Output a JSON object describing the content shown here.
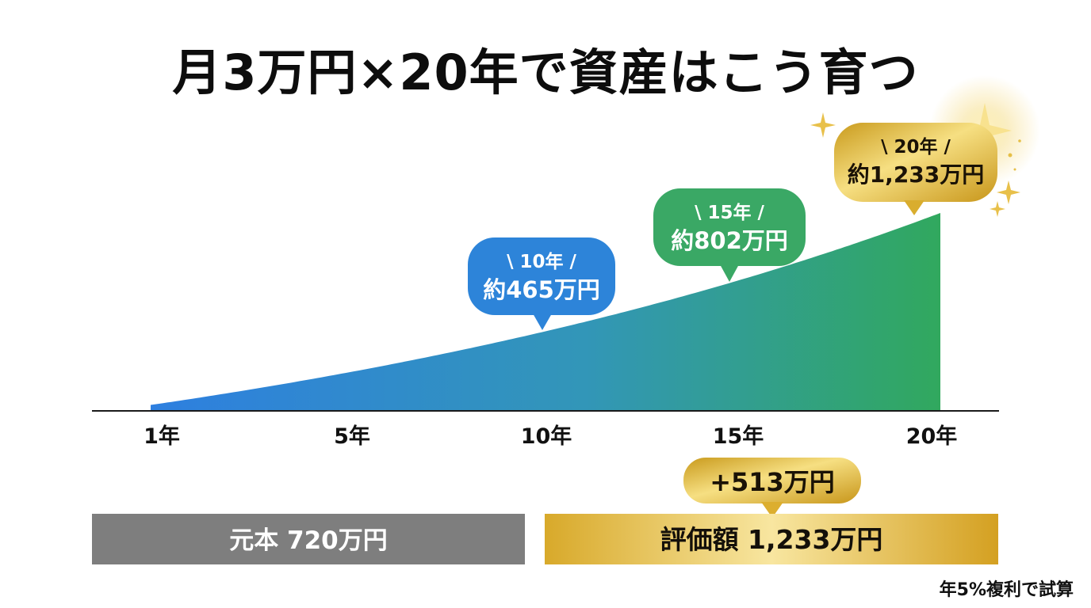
{
  "chart_data": {
    "type": "area",
    "title": "月3万円×20年で資産はこう育つ",
    "x": [
      1,
      5,
      10,
      15,
      20
    ],
    "x_tick_labels": [
      "1年",
      "5年",
      "10年",
      "15年",
      "20年"
    ],
    "series": [
      {
        "values": [
          37,
          204,
          465,
          802,
          1233
        ]
      }
    ],
    "value_unit": "万円",
    "xlim": [
      1,
      20
    ],
    "ylim": [
      0,
      1300
    ],
    "grid": false,
    "annotations": [
      {
        "x": 10,
        "value": 465,
        "line1": "\\ 10年 /",
        "line2": "約465万円"
      },
      {
        "x": 15,
        "value": 802,
        "line1": "\\ 15年 /",
        "line2": "約802万円"
      },
      {
        "x": 20,
        "value": 1233,
        "line1": "\\ 20年 /",
        "line2": "約1,233万円"
      }
    ],
    "comparison": {
      "principal_label": "元本 720万円",
      "principal": 720,
      "valuation_label": "評価額 1,233万円",
      "valuation": 1233,
      "gain_label": "+513万円",
      "gain": 513
    },
    "footnote": "年5%複利で試算",
    "colors": {
      "area_start": "#2e7fe0",
      "area_end": "#31a85e",
      "callout_blue": "#2d84d9",
      "callout_green": "#3aa865",
      "gold": "#e0b532",
      "principal_bar": "#7e7e7e"
    }
  }
}
